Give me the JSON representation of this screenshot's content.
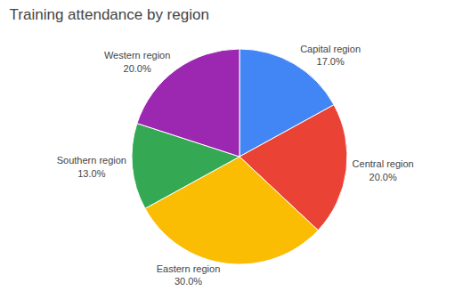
{
  "chart_data": {
    "type": "pie",
    "title": "Training attendance by region",
    "categories": [
      "Capital region",
      "Central region",
      "Eastern region",
      "Southern region",
      "Western region"
    ],
    "values": [
      17.0,
      20.0,
      30.0,
      13.0,
      20.0
    ],
    "value_labels": [
      "17.0%",
      "20.0%",
      "30.0%",
      "13.0%",
      "20.0%"
    ],
    "colors": [
      "#4285F4",
      "#EA4335",
      "#FBBC04",
      "#34A853",
      "#9C27B0"
    ],
    "data_labels": true
  }
}
